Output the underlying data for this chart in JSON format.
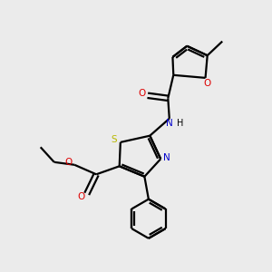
{
  "bg_color": "#ebebeb",
  "bond_color": "#000000",
  "S_color": "#b8b800",
  "N_color": "#0000cc",
  "O_color": "#dd0000",
  "lw": 1.6,
  "lw2": 1.6,
  "fs": 7.5,
  "figsize": [
    3.0,
    3.0
  ],
  "dpi": 100,
  "xlim": [
    0,
    10
  ],
  "ylim": [
    0,
    10
  ]
}
